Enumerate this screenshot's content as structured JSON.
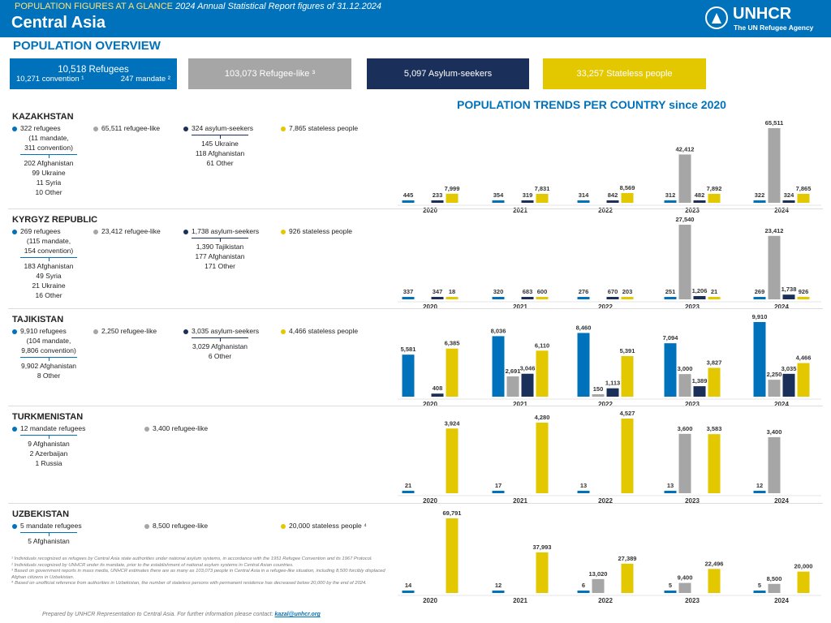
{
  "header": {
    "kicker": "POPULATION FIGURES AT A GLANCE",
    "subtitle": "2024 Annual Statistical Report figures of 31.12.2024",
    "title": "Central Asia",
    "logo": "UNHCR",
    "logo_sub": "The UN Refugee Agency"
  },
  "overview": {
    "title": "POPULATION OVERVIEW",
    "refugees": "10,518 Refugees",
    "convention": "10,271 convention ¹",
    "mandate": "247 mandate ²",
    "refugee_like": "103,073 Refugee-like ³",
    "asylum": "5,097 Asylum-seekers",
    "stateless": "33,257 Stateless people"
  },
  "trends_title": "POPULATION TRENDS PER COUNTRY since 2020",
  "countries": [
    {
      "name": "KAZAKHSTAN",
      "groups": [
        {
          "lines": [
            "322 refugees",
            "(11 mandate,",
            "311 convention)"
          ],
          "breakdown": [
            "202 Afghanistan",
            "99 Ukraine",
            "11 Syria",
            "10 Other"
          ]
        },
        {
          "lines": [
            "65,511 refugee-like"
          ]
        },
        {
          "lines": [
            "324 asylum-seekers"
          ],
          "breakdown": [
            "145 Ukraine",
            "118 Afghanistan",
            "61 Other"
          ]
        },
        {
          "lines": [
            "7,865 stateless people"
          ]
        }
      ]
    },
    {
      "name": "KYRGYZ REPUBLIC",
      "groups": [
        {
          "lines": [
            "269 refugees",
            "(115 mandate,",
            "154 convention)"
          ],
          "breakdown": [
            "183 Afghanistan",
            "49 Syria",
            "21 Ukraine",
            "16 Other"
          ]
        },
        {
          "lines": [
            "23,412 refugee-like"
          ]
        },
        {
          "lines": [
            "1,738 asylum-seekers"
          ],
          "breakdown": [
            "1,390 Tajikistan",
            "177 Afghanistan",
            "171 Other"
          ]
        },
        {
          "lines": [
            "926 stateless people"
          ]
        }
      ]
    },
    {
      "name": "TAJIKISTAN",
      "groups": [
        {
          "lines": [
            "9,910 refugees",
            "(104 mandate,",
            "9,806 convention)"
          ],
          "breakdown": [
            "9,902 Afghanistan",
            "8 Other"
          ]
        },
        {
          "lines": [
            "2,250 refugee-like"
          ]
        },
        {
          "lines": [
            "3,035 asylum-seekers"
          ],
          "breakdown": [
            "3,029 Afghanistan",
            "6 Other"
          ]
        },
        {
          "lines": [
            "4,466 stateless people"
          ]
        }
      ]
    },
    {
      "name": "TURKMENISTAN",
      "groups": [
        {
          "lines": [
            "12 mandate refugees"
          ],
          "breakdown": [
            "9 Afghanistan",
            "2 Azerbaijan",
            "1 Russia"
          ]
        },
        {
          "lines": [
            "3,400 refugee-like"
          ]
        }
      ]
    },
    {
      "name": "UZBEKISTAN",
      "groups": [
        {
          "lines": [
            "5 mandate refugees"
          ],
          "breakdown": [
            "5 Afghanistan"
          ]
        },
        {
          "lines": [
            "8,500 refugee-like"
          ]
        },
        {
          "lines": [
            "20,000 stateless people ⁴"
          ]
        }
      ]
    }
  ],
  "chart_data": [
    {
      "type": "bar",
      "categories": [
        "2020",
        "2021",
        "2022",
        "2023",
        "2024"
      ],
      "series": [
        {
          "color": "#0072bc",
          "values": [
            445,
            354,
            314,
            312,
            322
          ],
          "value_labels": [
            "445",
            "354",
            "314",
            "312",
            "322"
          ]
        },
        {
          "color": "#a6a6a6",
          "values": [
            null,
            null,
            null,
            42412,
            65511
          ],
          "value_labels": [
            null,
            null,
            null,
            "42,412",
            "65,511"
          ]
        },
        {
          "color": "#1b2f5b",
          "values": [
            233,
            319,
            842,
            482,
            324
          ],
          "value_labels": [
            "233",
            "319",
            "842",
            "482",
            "324"
          ]
        },
        {
          "color": "#e3c800",
          "values": [
            7999,
            7831,
            8569,
            7892,
            7865
          ],
          "value_labels": [
            "7,999",
            "7,831",
            "8,569",
            "7,892",
            "7,865"
          ]
        }
      ]
    },
    {
      "type": "bar",
      "categories": [
        "2020",
        "2021",
        "2022",
        "2023",
        "2024"
      ],
      "series": [
        {
          "color": "#0072bc",
          "values": [
            337,
            320,
            276,
            251,
            269
          ],
          "value_labels": [
            "337",
            "320",
            "276",
            "251",
            "269"
          ]
        },
        {
          "color": "#a6a6a6",
          "values": [
            null,
            null,
            null,
            27540,
            23412
          ],
          "value_labels": [
            null,
            null,
            null,
            "27,540",
            "23,412"
          ]
        },
        {
          "color": "#1b2f5b",
          "values": [
            347,
            683,
            670,
            1206,
            1738
          ],
          "value_labels": [
            "347",
            "683",
            "670",
            "1,206",
            "1,738"
          ]
        },
        {
          "color": "#e3c800",
          "values": [
            18,
            600,
            203,
            21,
            926
          ],
          "value_labels": [
            "18",
            "600",
            "203",
            "21",
            "926"
          ]
        }
      ]
    },
    {
      "type": "bar",
      "categories": [
        "2020",
        "2021",
        "2022",
        "2023",
        "2024"
      ],
      "series": [
        {
          "color": "#0072bc",
          "values": [
            5581,
            8036,
            8460,
            7094,
            9910
          ],
          "value_labels": [
            "5,581",
            "8,036",
            "8,460",
            "7,094",
            "9,910"
          ]
        },
        {
          "color": "#a6a6a6",
          "values": [
            null,
            2691,
            150,
            3000,
            2250
          ],
          "value_labels": [
            null,
            "2,691",
            "150",
            "3,000",
            "2,250"
          ]
        },
        {
          "color": "#1b2f5b",
          "values": [
            408,
            3046,
            1113,
            1389,
            3035
          ],
          "value_labels": [
            "408",
            "3,046",
            "1,113",
            "1,389",
            "3,035"
          ]
        },
        {
          "color": "#e3c800",
          "values": [
            6385,
            6110,
            5391,
            3827,
            4466
          ],
          "value_labels": [
            "6,385",
            "6,110",
            "5,391",
            "3,827",
            "4,466"
          ]
        }
      ]
    },
    {
      "type": "bar",
      "categories": [
        "2020",
        "2021",
        "2022",
        "2023",
        "2024"
      ],
      "series": [
        {
          "color": "#0072bc",
          "values": [
            21,
            17,
            13,
            13,
            12
          ],
          "value_labels": [
            "21",
            "17",
            "13",
            "13",
            "12"
          ]
        },
        {
          "color": "#a6a6a6",
          "values": [
            null,
            null,
            null,
            3600,
            3400
          ],
          "value_labels": [
            null,
            null,
            null,
            "3,600",
            "3,400"
          ]
        },
        {
          "color": "#1b2f5b",
          "values": [
            null,
            null,
            null,
            null,
            null
          ],
          "value_labels": [
            null,
            null,
            null,
            null,
            null
          ]
        },
        {
          "color": "#e3c800",
          "values": [
            3924,
            4280,
            4527,
            3583,
            null
          ],
          "value_labels": [
            "3,924",
            "4,280",
            "4,527",
            "3,583",
            null
          ]
        }
      ]
    },
    {
      "type": "bar",
      "categories": [
        "2020",
        "2021",
        "2022",
        "2023",
        "2024"
      ],
      "series": [
        {
          "color": "#0072bc",
          "values": [
            14,
            12,
            6,
            5,
            5
          ],
          "value_labels": [
            "14",
            "12",
            "6",
            "5",
            "5"
          ]
        },
        {
          "color": "#a6a6a6",
          "values": [
            null,
            null,
            13020,
            9400,
            8500
          ],
          "value_labels": [
            null,
            null,
            "13,020",
            "9,400",
            "8,500"
          ]
        },
        {
          "color": "#1b2f5b",
          "values": [
            null,
            null,
            null,
            null,
            null
          ],
          "value_labels": [
            null,
            null,
            null,
            null,
            null
          ]
        },
        {
          "color": "#e3c800",
          "values": [
            69791,
            37993,
            27389,
            22496,
            20000
          ],
          "value_labels": [
            "69,791",
            "37,993",
            "27,389",
            "22,496",
            "20,000"
          ]
        }
      ]
    }
  ],
  "footnotes": [
    "¹ Individuals recognized as refugees by Central Asia state authorities under national asylum systems, in accordance with the 1951 Refugee Convention and its 1967 Protocol.",
    "² Individuals recognized by UNHCR under its mandate, prior to the establishment of national asylum systems in Central Asian countries.",
    "³ Based on government reports in mass media, UNHCR estimates there are as many as 103,073 people in Central Asia in a refugee-like situation, including 8,500 forcibly displaced Afghan citizens in Uzbekistan.",
    "⁴ Based on unofficial reference from authorities in Uzbekistan, the number of stateless persons with permanent residence has decreased below 20,000 by the end of 2024."
  ],
  "footer": {
    "text": "Prepared by UNHCR Representation to Central Asia. For further information please contact:",
    "email": "kazal@unhcr.org"
  }
}
